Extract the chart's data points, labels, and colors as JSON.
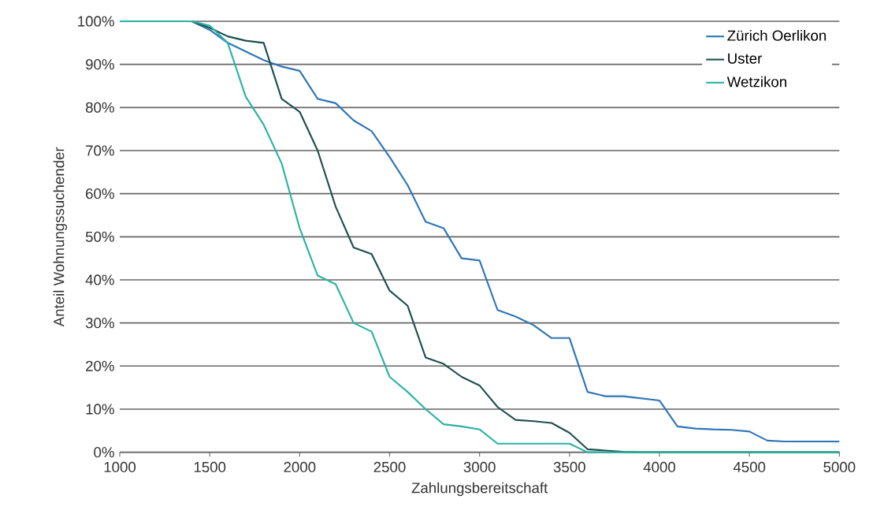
{
  "chart_data": {
    "type": "line",
    "xlabel": "Zahlungsbereitschaft",
    "ylabel": "Anteil Wohnungssuchender",
    "x": [
      1000,
      1100,
      1200,
      1300,
      1400,
      1500,
      1600,
      1700,
      1800,
      1900,
      2000,
      2100,
      2200,
      2300,
      2400,
      2500,
      2600,
      2700,
      2800,
      2900,
      3000,
      3100,
      3200,
      3300,
      3400,
      3500,
      3600,
      3700,
      3800,
      3900,
      4000,
      4100,
      4200,
      4300,
      4400,
      4500,
      4600,
      4700,
      4800,
      4900,
      5000
    ],
    "series": [
      {
        "name": "Zürich Oerlikon",
        "color": "#2e75b6",
        "values": [
          null,
          null,
          null,
          100,
          100,
          98,
          95,
          93,
          91,
          89.5,
          88.5,
          82,
          81,
          77,
          74.5,
          68.5,
          62,
          53.5,
          52,
          45,
          44.5,
          33,
          31.5,
          29.5,
          26.5,
          26.5,
          14,
          13,
          13,
          12.5,
          12,
          6,
          5.5,
          5.3,
          5.2,
          4.8,
          2.7,
          2.5,
          2.5,
          2.5,
          2.5
        ]
      },
      {
        "name": "Uster",
        "color": "#1f4e4e",
        "values": [
          null,
          null,
          null,
          100,
          100,
          98.5,
          96.5,
          95.5,
          95,
          82,
          79,
          70,
          57,
          47.5,
          46,
          37.5,
          34,
          22,
          20.5,
          17.5,
          15.5,
          10.5,
          7.5,
          7.2,
          6.8,
          4.5,
          0.7,
          0.4,
          0.1,
          0,
          0,
          0,
          0,
          0,
          0,
          0,
          0,
          0,
          0,
          0,
          0
        ]
      },
      {
        "name": "Wetzikon",
        "color": "#2ab3a3",
        "values": [
          100,
          100,
          100,
          100,
          100,
          99,
          95,
          82.5,
          76,
          67,
          52,
          41,
          39,
          30,
          28,
          17.5,
          14,
          10,
          6.5,
          6,
          5.3,
          2,
          2,
          2,
          2,
          2,
          0,
          0,
          0,
          0,
          0,
          0,
          0,
          0,
          0,
          0,
          0,
          0,
          0,
          0,
          0
        ]
      }
    ],
    "xlim": [
      1000,
      5000
    ],
    "ylim": [
      0,
      100
    ],
    "xticks": [
      1000,
      1500,
      2000,
      2500,
      3000,
      3500,
      4000,
      4500,
      5000
    ],
    "yticks": [
      {
        "value": 0,
        "label": "0%"
      },
      {
        "value": 10,
        "label": "10%"
      },
      {
        "value": 20,
        "label": "20%"
      },
      {
        "value": 30,
        "label": "30%"
      },
      {
        "value": 40,
        "label": "40%"
      },
      {
        "value": 50,
        "label": "50%"
      },
      {
        "value": 60,
        "label": "60%"
      },
      {
        "value": 70,
        "label": "70%"
      },
      {
        "value": 80,
        "label": "80%"
      },
      {
        "value": 90,
        "label": "90%"
      },
      {
        "value": 100,
        "label": "100%"
      }
    ],
    "grid": "y",
    "legend": "top right",
    "marker": "none",
    "line_style": "solid"
  }
}
